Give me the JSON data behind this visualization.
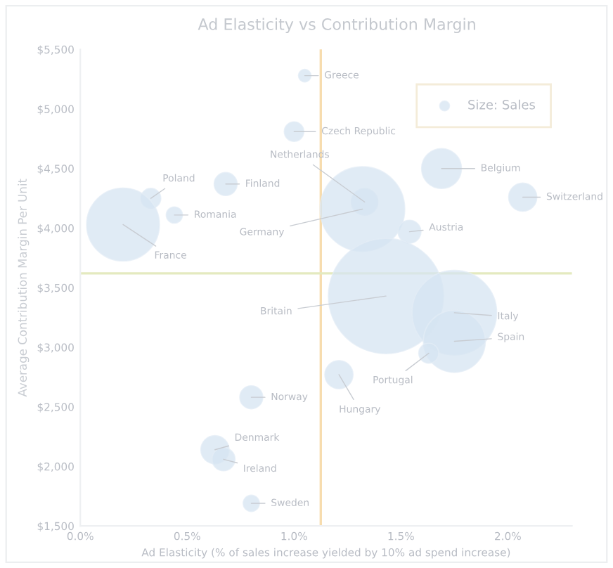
{
  "chart_data": {
    "type": "bubble",
    "title": "Ad Elasticity vs Contribution Margin",
    "xlabel": "Ad Elasticity (% of sales increase yielded by 10% ad spend increase)",
    "ylabel": "Average Contribution Margin Per Unit",
    "xlim": [
      0,
      2.3
    ],
    "ylim": [
      1500,
      5500
    ],
    "xticks": [
      {
        "value": 0,
        "label": "0.0%"
      },
      {
        "value": 0.5,
        "label": "0.5%"
      },
      {
        "value": 1,
        "label": "1.0%"
      },
      {
        "value": 1.5,
        "label": "1.5%"
      },
      {
        "value": 2,
        "label": "2.0%"
      }
    ],
    "yticks": [
      {
        "value": 1500,
        "label": "$1,500"
      },
      {
        "value": 2000,
        "label": "$2,000"
      },
      {
        "value": 2500,
        "label": "$2,500"
      },
      {
        "value": 3000,
        "label": "$3,000"
      },
      {
        "value": 3500,
        "label": "$3,500"
      },
      {
        "value": 4000,
        "label": "$4,000"
      },
      {
        "value": 4500,
        "label": "$4,500"
      },
      {
        "value": 5000,
        "label": "$5,000"
      },
      {
        "value": 5500,
        "label": "$5,500"
      }
    ],
    "series": [
      {
        "name": "Size: Sales",
        "color": "#d6e4f2",
        "x": [
          1.05,
          1.0,
          1.33,
          1.32,
          1.69,
          2.07,
          1.54,
          0.33,
          0.68,
          0.44,
          0.2,
          1.43,
          1.75,
          1.75,
          1.63,
          1.21,
          0.8,
          0.63,
          0.67,
          0.8
        ],
        "values": [
          5280,
          4810,
          4220,
          4160,
          4500,
          4260,
          3970,
          4250,
          4370,
          4110,
          4030,
          3430,
          3290,
          3050,
          2950,
          2770,
          2580,
          2140,
          2060,
          1690
        ],
        "sizes": [
          0.012,
          0.029,
          0.054,
          0.54,
          0.12,
          0.06,
          0.04,
          0.03,
          0.04,
          0.02,
          0.4,
          1,
          0.54,
          0.29,
          0.03,
          0.06,
          0.04,
          0.06,
          0.04,
          0.02
        ]
      }
    ],
    "annotations": [
      {
        "text": "Greece",
        "x": 1.05,
        "y": 5280
      },
      {
        "text": "Czech Republic",
        "x": 1.0,
        "y": 4810
      },
      {
        "text": "Netherlands",
        "x": 1.33,
        "y": 4220
      },
      {
        "text": "Germany",
        "x": 1.32,
        "y": 4160
      },
      {
        "text": "Belgium",
        "x": 1.69,
        "y": 4500
      },
      {
        "text": "Switzerland",
        "x": 2.07,
        "y": 4260
      },
      {
        "text": "Austria",
        "x": 1.54,
        "y": 3970
      },
      {
        "text": "Poland",
        "x": 0.33,
        "y": 4250
      },
      {
        "text": "Finland",
        "x": 0.68,
        "y": 4370
      },
      {
        "text": "Romania",
        "x": 0.44,
        "y": 4110
      },
      {
        "text": "France",
        "x": 0.2,
        "y": 4030
      },
      {
        "text": "Britain",
        "x": 1.43,
        "y": 3430
      },
      {
        "text": "Italy",
        "x": 1.75,
        "y": 3290
      },
      {
        "text": "Spain",
        "x": 1.75,
        "y": 3050
      },
      {
        "text": "Portugal",
        "x": 1.63,
        "y": 2950
      },
      {
        "text": "Hungary",
        "x": 1.21,
        "y": 2770
      },
      {
        "text": "Norway",
        "x": 0.8,
        "y": 2580
      },
      {
        "text": "Denmark",
        "x": 0.63,
        "y": 2140
      },
      {
        "text": "Ireland",
        "x": 0.67,
        "y": 2060
      },
      {
        "text": "Sweden",
        "x": 0.8,
        "y": 1690
      }
    ],
    "ref_lines": [
      {
        "axis": "x",
        "value": 1.125,
        "color": "#f7dcae"
      },
      {
        "axis": "y",
        "value": 3620,
        "color": "#e4eabf"
      }
    ],
    "legend": "top right",
    "grid": false
  }
}
